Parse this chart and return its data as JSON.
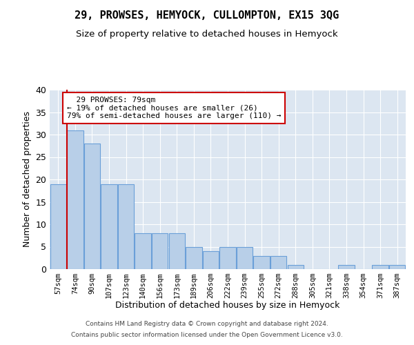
{
  "title": "29, PROWSES, HEMYOCK, CULLOMPTON, EX15 3QG",
  "subtitle": "Size of property relative to detached houses in Hemyock",
  "xlabel": "Distribution of detached houses by size in Hemyock",
  "ylabel": "Number of detached properties",
  "categories": [
    "57sqm",
    "74sqm",
    "90sqm",
    "107sqm",
    "123sqm",
    "140sqm",
    "156sqm",
    "173sqm",
    "189sqm",
    "206sqm",
    "222sqm",
    "239sqm",
    "255sqm",
    "272sqm",
    "288sqm",
    "305sqm",
    "321sqm",
    "338sqm",
    "354sqm",
    "371sqm",
    "387sqm"
  ],
  "values": [
    19,
    31,
    28,
    19,
    19,
    8,
    8,
    8,
    5,
    4,
    5,
    5,
    3,
    3,
    1,
    0,
    0,
    1,
    0,
    1,
    1
  ],
  "bar_color": "#b8cfe8",
  "bar_edge_color": "#6a9fd8",
  "background_color": "#dce6f1",
  "grid_color": "#ffffff",
  "red_line_x": 0.5,
  "annotation_text": "  29 PROWSES: 79sqm\n← 19% of detached houses are smaller (26)\n79% of semi-detached houses are larger (110) →",
  "annotation_box_color": "#ffffff",
  "annotation_box_edge": "#cc0000",
  "ylim": [
    0,
    40
  ],
  "yticks": [
    0,
    5,
    10,
    15,
    20,
    25,
    30,
    35,
    40
  ],
  "footer_line1": "Contains HM Land Registry data © Crown copyright and database right 2024.",
  "footer_line2": "Contains public sector information licensed under the Open Government Licence v3.0."
}
